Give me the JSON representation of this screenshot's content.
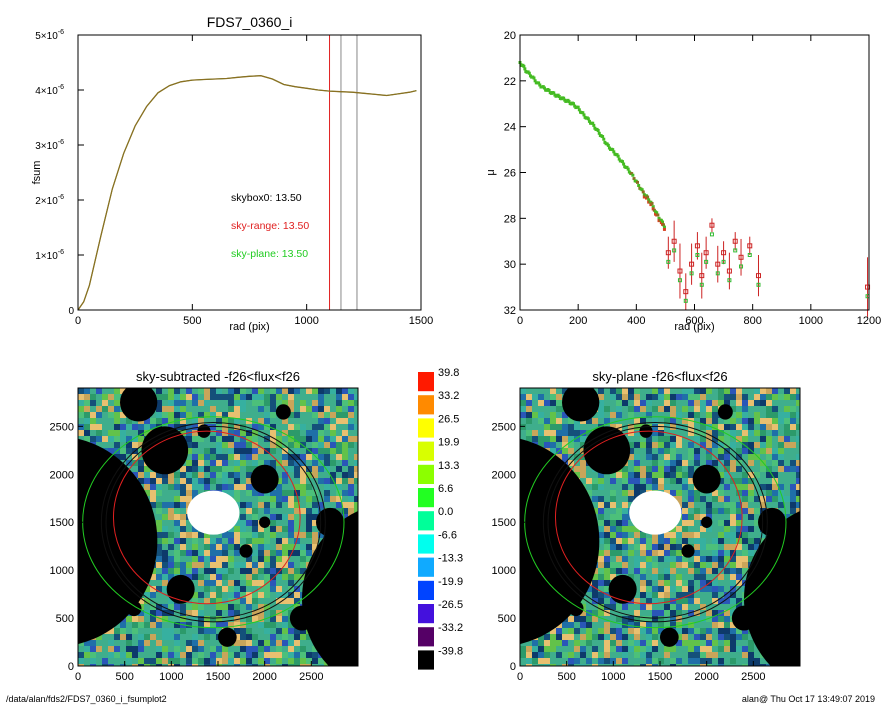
{
  "chart_data": [
    {
      "type": "line",
      "title": "FDS7_0360_i",
      "xlabel": "rad (pix)",
      "ylabel": "fsum",
      "xlim": [
        0,
        1500
      ],
      "ylim": [
        0,
        5e-06
      ],
      "xticks": [
        "0",
        "500",
        "1000",
        "1500"
      ],
      "yticks": [
        {
          "base": "0",
          "exp": ""
        },
        {
          "base": "1×10",
          "exp": "-6"
        },
        {
          "base": "2×10",
          "exp": "-6"
        },
        {
          "base": "3×10",
          "exp": "-6"
        },
        {
          "base": "4×10",
          "exp": "-6"
        },
        {
          "base": "5×10",
          "exp": "-6"
        }
      ],
      "series": [
        {
          "color": "#8b6f22",
          "x": [
            0,
            25,
            50,
            100,
            150,
            200,
            250,
            300,
            350,
            400,
            450,
            500,
            550,
            600,
            650,
            700,
            750,
            800,
            850,
            900,
            950,
            1000,
            1050,
            1100,
            1150,
            1200,
            1250,
            1300,
            1350,
            1400,
            1450,
            1480
          ],
          "y": [
            0,
            0.15,
            0.45,
            1.35,
            2.2,
            2.85,
            3.35,
            3.7,
            3.95,
            4.08,
            4.15,
            4.18,
            4.19,
            4.2,
            4.21,
            4.23,
            4.25,
            4.26,
            4.2,
            4.1,
            4.06,
            4.03,
            4.0,
            3.98,
            3.97,
            3.96,
            3.94,
            3.92,
            3.9,
            3.93,
            3.96,
            3.99
          ]
        }
      ],
      "vlines": [
        {
          "x": 1100,
          "color": "#e02020"
        },
        {
          "x": 1150,
          "color": "#888888"
        },
        {
          "x": 1220,
          "color": "#888888"
        }
      ],
      "annotations": [
        {
          "text": "skybox0: 13.50",
          "color": "#000000"
        },
        {
          "text": "sky-range: 13.50",
          "color": "#e02020"
        },
        {
          "text": "sky-plane: 13.50",
          "color": "#22cc22"
        }
      ]
    },
    {
      "type": "scatter",
      "xlabel": "rad (pix)",
      "ylabel": "μ",
      "xlim": [
        0,
        1200
      ],
      "ylim": [
        32,
        20
      ],
      "xticks": [
        "0",
        "200",
        "400",
        "600",
        "800",
        "1000",
        "1200"
      ],
      "yticks": [
        "20",
        "22",
        "24",
        "26",
        "28",
        "30",
        "32"
      ],
      "profile": {
        "color": "#44bb22",
        "x": [
          0,
          10,
          20,
          40,
          60,
          80,
          100,
          120,
          150,
          180,
          200,
          220,
          250,
          280,
          300,
          330,
          360,
          380,
          400,
          420,
          450,
          470,
          490,
          500
        ],
        "y": [
          21.2,
          21.35,
          21.55,
          21.8,
          22.1,
          22.3,
          22.45,
          22.6,
          22.8,
          23.0,
          23.2,
          23.5,
          23.9,
          24.4,
          24.8,
          25.2,
          25.7,
          26.0,
          26.4,
          26.8,
          27.3,
          27.8,
          28.2,
          28.4
        ]
      },
      "outer_points": {
        "x": [
          510,
          530,
          550,
          570,
          590,
          610,
          625,
          640,
          660,
          680,
          700,
          720,
          740,
          760,
          790,
          820,
          1195
        ],
        "y": [
          29.5,
          29.0,
          30.3,
          31.2,
          30.0,
          29.2,
          30.5,
          29.5,
          28.3,
          30.0,
          29.5,
          30.3,
          29.0,
          29.7,
          29.2,
          30.5,
          31.0
        ],
        "err": [
          0.7,
          0.9,
          1.2,
          0.8,
          0.9,
          0.6,
          1.0,
          0.7,
          0.3,
          0.8,
          0.5,
          0.8,
          0.4,
          0.8,
          0.4,
          0.9,
          1.3
        ]
      }
    },
    {
      "type": "heatmap",
      "title": "sky-subtracted -f26<flux<f26",
      "xlim": [
        0,
        3000
      ],
      "ylim": [
        0,
        2900
      ],
      "xticks": [
        "0",
        "500",
        "1000",
        "1500",
        "2000",
        "2500"
      ],
      "yticks": [
        "0",
        "500",
        "1000",
        "1500",
        "2000",
        "2500"
      ],
      "colorbar": {
        "labels": [
          "39.8",
          "33.2",
          "26.5",
          "19.9",
          "13.3",
          "6.6",
          "0.0",
          "-6.6",
          "-13.3",
          "-19.9",
          "-26.5",
          "-33.2",
          "-39.8"
        ],
        "colors": [
          "#ff1a00",
          "#ff8a00",
          "#ffff00",
          "#d8ff00",
          "#8cff00",
          "#22ff22",
          "#00ff99",
          "#00ffee",
          "#10aaff",
          "#0044ff",
          "#4411dd",
          "#550066",
          "#000000"
        ]
      }
    },
    {
      "type": "heatmap",
      "title": "sky-plane -f26<flux<f26",
      "xlim": [
        0,
        3000
      ],
      "ylim": [
        0,
        2900
      ],
      "xticks": [
        "0",
        "500",
        "1000",
        "1500",
        "2000",
        "2500"
      ],
      "yticks": [
        "0",
        "500",
        "1000",
        "1500",
        "2000",
        "2500"
      ]
    }
  ],
  "footer": {
    "left": "/data/alan/fds2/FDS7_0360_i_fsumplot2",
    "right": "alan@  Thu Oct 17 13:49:07 2019"
  },
  "colors": {
    "axis": "#000000",
    "red_line": "#e02020",
    "green": "#22cc22",
    "profile": "#8b6f22"
  }
}
